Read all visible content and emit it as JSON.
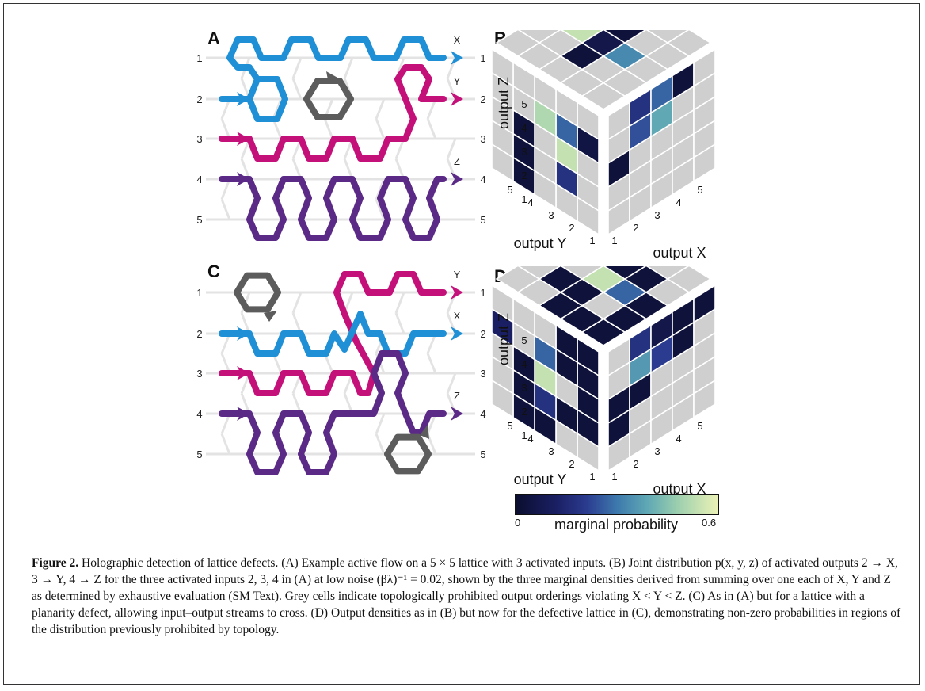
{
  "panels": {
    "a": "A",
    "b": "B",
    "c": "C",
    "d": "D"
  },
  "rows": [
    "1",
    "2",
    "3",
    "4",
    "5"
  ],
  "lattice_a": {
    "out_labels": [
      "X",
      "Y",
      "Z"
    ]
  },
  "lattice_c": {
    "out_labels": [
      "Y",
      "X",
      "Z"
    ]
  },
  "cube": {
    "axis_z": "output Z",
    "axis_y": "output Y",
    "axis_x": "output X",
    "ticks": [
      "1",
      "2",
      "3",
      "4",
      "5"
    ]
  },
  "colorbar": {
    "min": "0",
    "max": "0.6",
    "title": "marginal probability"
  },
  "caption": {
    "title": "Figure 2.",
    "text": " Holographic detection of lattice defects. (A) Example active flow on a 5 × 5 lattice with 3 activated inputs. (B) Joint distribution p(x, y, z) of activated outputs 2 → X, 3 → Y, 4 → Z for the three activated inputs 2, 3, 4 in (A) at low noise (βλ)⁻¹ = 0.02, shown by the three marginal densities derived from summing over one each of X, Y and Z as determined by exhaustive evaluation (SM Text). Grey cells indicate topologically prohibited output orderings violating X < Y < Z. (C) As in (A) but for a lattice with a planarity defect, allowing input–output streams to cross. (D) Output densities as in (B) but now for the defective lattice in (C), demonstrating non-zero probabilities in regions of the distribution previously prohibited by topology."
  },
  "colors": {
    "blue": "#1f8fd6",
    "magenta": "#c4117a",
    "purple": "#5b2a86",
    "grey_loop": "#5c5c5c",
    "lattice": "#e3e3e3",
    "prohibited": "#cfcfcf"
  }
}
